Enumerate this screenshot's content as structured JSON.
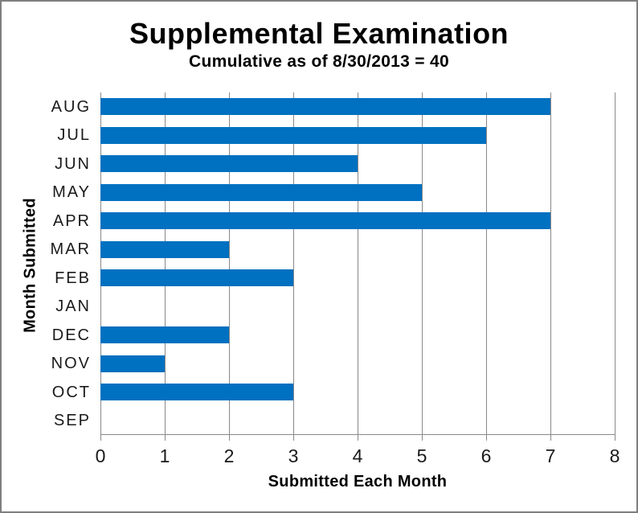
{
  "chart_data": {
    "type": "bar",
    "orientation": "horizontal",
    "title": "Supplemental Examination",
    "subtitle": "Cumulative as of 8/30/2013 = 40",
    "xlabel": "Submitted Each Month",
    "ylabel": "Month Submitted",
    "categories": [
      "AUG",
      "JUL",
      "JUN",
      "MAY",
      "APR",
      "MAR",
      "FEB",
      "JAN",
      "DEC",
      "NOV",
      "OCT",
      "SEP"
    ],
    "values": [
      7,
      6,
      4,
      5,
      7,
      2,
      3,
      0,
      2,
      1,
      3,
      0
    ],
    "cumulative_total": 40,
    "xlim": [
      0,
      8
    ],
    "xticks": [
      "0",
      "1",
      "2",
      "3",
      "4",
      "5",
      "6",
      "7",
      "8"
    ],
    "grid": true,
    "legend": false,
    "colors": {
      "bar": "#0070C0",
      "grid": "#898989",
      "axis": "#898989",
      "text": "#000000",
      "frame_border": "#7F7F7F"
    }
  }
}
